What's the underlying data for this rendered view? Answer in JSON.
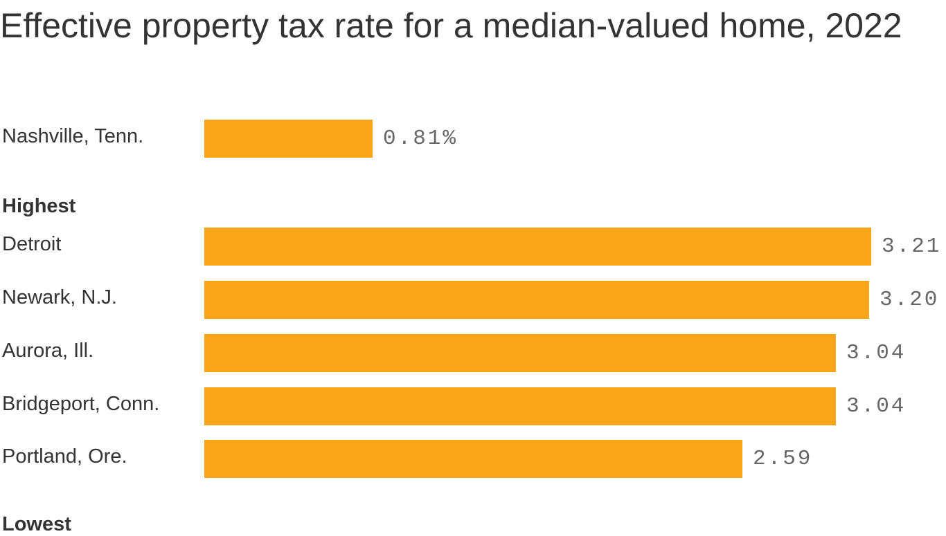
{
  "chart_data": {
    "type": "bar",
    "orientation": "horizontal",
    "title": "Effective property tax rate for a median-valued home, 2022",
    "bar_color": "#fca517",
    "xlim": [
      0,
      3.5
    ],
    "grid": false,
    "groups": [
      {
        "label": "",
        "items": [
          {
            "category": "Nashville, Tenn.",
            "value": 0.81,
            "value_label": "0.81%"
          }
        ]
      },
      {
        "label": "Highest",
        "items": [
          {
            "category": "Detroit",
            "value": 3.21,
            "value_label": "3.21"
          },
          {
            "category": "Newark, N.J.",
            "value": 3.2,
            "value_label": "3.20"
          },
          {
            "category": "Aurora, Ill.",
            "value": 3.04,
            "value_label": "3.04"
          },
          {
            "category": "Bridgeport, Conn.",
            "value": 3.04,
            "value_label": "3.04"
          },
          {
            "category": "Portland, Ore.",
            "value": 2.59,
            "value_label": "2.59"
          }
        ]
      },
      {
        "label": "Lowest",
        "items": []
      }
    ]
  }
}
